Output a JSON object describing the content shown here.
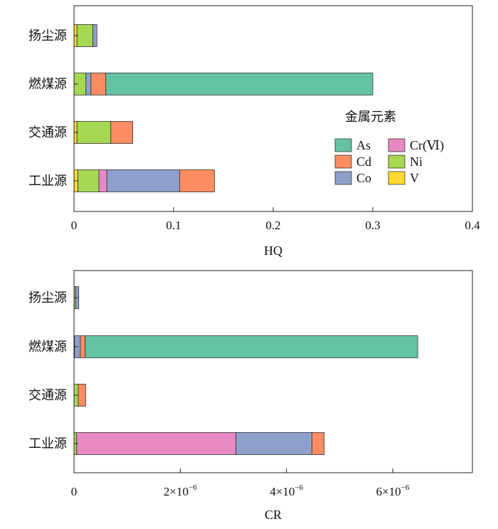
{
  "chart_data": [
    {
      "type": "bar",
      "orientation": "horizontal",
      "stacked": true,
      "categories": [
        "扬尘源",
        "燃煤源",
        "交通源",
        "工业源"
      ],
      "xlabel": "HQ",
      "xlim": [
        0,
        0.4
      ],
      "xticks": [
        0,
        0.1,
        0.2,
        0.3,
        0.4
      ],
      "xtick_labels": [
        "0",
        "0.1",
        "0.2",
        "0.3",
        "0.4"
      ],
      "series_order": [
        "V",
        "Ni",
        "Cr(Ⅵ)",
        "Co",
        "Cd",
        "As"
      ],
      "series": [
        {
          "name": "V",
          "values": [
            0.003,
            0.0,
            0.003,
            0.004
          ]
        },
        {
          "name": "Ni",
          "values": [
            0.016,
            0.012,
            0.034,
            0.021
          ]
        },
        {
          "name": "Cr(Ⅵ)",
          "values": [
            0.0,
            0.0,
            0.0,
            0.008
          ]
        },
        {
          "name": "Co",
          "values": [
            0.004,
            0.005,
            0.0,
            0.073
          ]
        },
        {
          "name": "Cd",
          "values": [
            0.0,
            0.015,
            0.022,
            0.035
          ]
        },
        {
          "name": "As",
          "values": [
            0.0,
            0.268,
            0.0,
            0.0
          ]
        }
      ],
      "legend": {
        "title": "金属元素",
        "placement": "right",
        "entries": [
          "As",
          "Cr(Ⅵ)",
          "Cd",
          "Ni",
          "Co",
          "V"
        ]
      }
    },
    {
      "type": "bar",
      "orientation": "horizontal",
      "stacked": true,
      "categories": [
        "扬尘源",
        "燃煤源",
        "交通源",
        "工业源"
      ],
      "xlabel": "CR",
      "xlim": [
        0,
        7.5e-06
      ],
      "xticks": [
        0,
        2e-06,
        4e-06,
        6e-06
      ],
      "xtick_labels": [
        "0",
        "2×10",
        "4×10",
        "6×10"
      ],
      "xtick_exponent": "−6",
      "series_order": [
        "V",
        "Ni",
        "Cr(Ⅵ)",
        "Co",
        "Cd",
        "As"
      ],
      "series": [
        {
          "name": "V",
          "values": [
            0.0,
            0.0,
            0.0,
            0.0
          ]
        },
        {
          "name": "Ni",
          "values": [
            3e-08,
            1e-08,
            8e-08,
            5e-08
          ]
        },
        {
          "name": "Cr(Ⅵ)",
          "values": [
            0.0,
            0.0,
            0.0,
            3e-06
          ]
        },
        {
          "name": "Co",
          "values": [
            6e-08,
            1.1e-07,
            0.0,
            1.43e-06
          ]
        },
        {
          "name": "Cd",
          "values": [
            0.0,
            9e-08,
            1.4e-07,
            2.3e-07
          ]
        },
        {
          "name": "As",
          "values": [
            0.0,
            6.26e-06,
            0.0,
            0.0
          ]
        }
      ]
    }
  ],
  "colors": {
    "As": "#66c2a5",
    "Cd": "#fc8d62",
    "Co": "#8da0cb",
    "Cr(Ⅵ)": "#e78ac3",
    "Ni": "#a6d854",
    "V": "#ffd92f"
  }
}
